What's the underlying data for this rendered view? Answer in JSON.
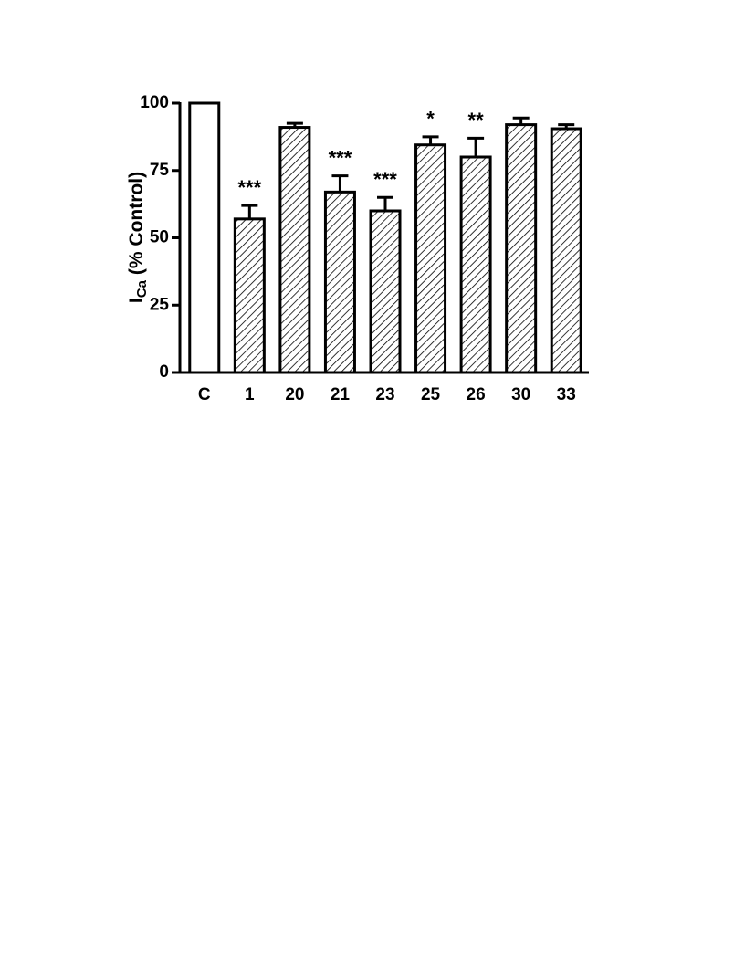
{
  "chart_data": {
    "type": "bar",
    "y_label": {
      "main": "I",
      "sub": "Ca",
      "rest": "(% Control)"
    },
    "categories": [
      "C",
      "1",
      "20",
      "21",
      "23",
      "25",
      "26",
      "30",
      "33"
    ],
    "values": [
      100,
      57,
      91,
      67,
      60,
      84.5,
      80,
      92,
      90.5
    ],
    "errors": [
      null,
      5,
      1.5,
      6,
      5,
      3,
      7,
      2.5,
      1.5
    ],
    "annotations": [
      null,
      "***",
      null,
      "***",
      "***",
      "*",
      "**",
      null,
      null
    ],
    "fills": [
      "#ffffff",
      "hatch",
      "hatch",
      "hatch",
      "hatch",
      "hatch",
      "hatch",
      "hatch",
      "hatch"
    ],
    "ylim": [
      0,
      100
    ],
    "yticks": [
      0,
      25,
      50,
      75,
      100
    ],
    "grid": false
  }
}
